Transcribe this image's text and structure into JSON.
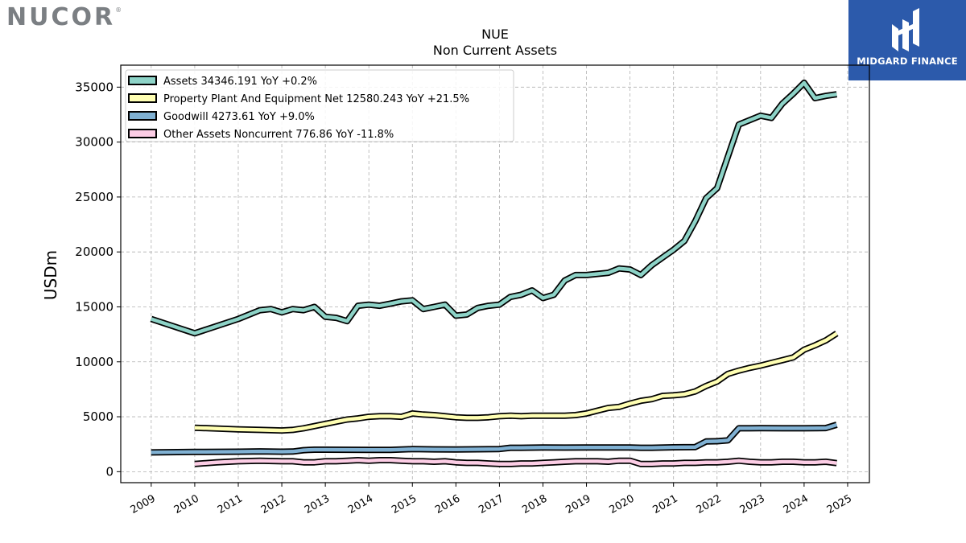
{
  "header": {
    "brand": "NUCOR",
    "brand_mark": "®",
    "badge_text": "MIDGARD FINANCE"
  },
  "chart_data": {
    "type": "line",
    "title": "NUE",
    "subtitle": "Non Current  Assets",
    "ylabel": "USDm",
    "xlabel": "",
    "ylim": [
      -1000,
      37000
    ],
    "xlim": [
      2008.3,
      2025.5
    ],
    "yticks": [
      0,
      5000,
      10000,
      15000,
      20000,
      25000,
      30000,
      35000
    ],
    "xticks": [
      2009,
      2010,
      2011,
      2012,
      2013,
      2014,
      2015,
      2016,
      2017,
      2018,
      2019,
      2020,
      2021,
      2022,
      2023,
      2024,
      2025
    ],
    "grid": true,
    "legend_position": "top-left",
    "series": [
      {
        "name": "Assets  34346.191 YoY +0.2%",
        "color": "#8dd3c7",
        "points": [
          [
            2009.0,
            13900
          ],
          [
            2010.0,
            12600
          ],
          [
            2011.0,
            13900
          ],
          [
            2011.5,
            14700
          ],
          [
            2011.75,
            14800
          ],
          [
            2012.0,
            14500
          ],
          [
            2012.25,
            14800
          ],
          [
            2012.5,
            14700
          ],
          [
            2012.75,
            15000
          ],
          [
            2013.0,
            14100
          ],
          [
            2013.25,
            14000
          ],
          [
            2013.5,
            13700
          ],
          [
            2013.75,
            15100
          ],
          [
            2014.0,
            15200
          ],
          [
            2014.25,
            15100
          ],
          [
            2014.5,
            15300
          ],
          [
            2014.75,
            15500
          ],
          [
            2015.0,
            15600
          ],
          [
            2015.25,
            14800
          ],
          [
            2015.5,
            15000
          ],
          [
            2015.75,
            15200
          ],
          [
            2016.0,
            14200
          ],
          [
            2016.25,
            14300
          ],
          [
            2016.5,
            14900
          ],
          [
            2016.75,
            15100
          ],
          [
            2017.0,
            15200
          ],
          [
            2017.25,
            15900
          ],
          [
            2017.5,
            16100
          ],
          [
            2017.75,
            16500
          ],
          [
            2018.0,
            15800
          ],
          [
            2018.25,
            16100
          ],
          [
            2018.5,
            17400
          ],
          [
            2018.75,
            17900
          ],
          [
            2019.0,
            17900
          ],
          [
            2019.25,
            18000
          ],
          [
            2019.5,
            18100
          ],
          [
            2019.75,
            18500
          ],
          [
            2020.0,
            18400
          ],
          [
            2020.25,
            17900
          ],
          [
            2020.5,
            18800
          ],
          [
            2020.75,
            19500
          ],
          [
            2021.0,
            20200
          ],
          [
            2021.25,
            21000
          ],
          [
            2021.5,
            22800
          ],
          [
            2021.75,
            24900
          ],
          [
            2022.0,
            25800
          ],
          [
            2022.25,
            28700
          ],
          [
            2022.5,
            31600
          ],
          [
            2022.75,
            32000
          ],
          [
            2023.0,
            32400
          ],
          [
            2023.25,
            32200
          ],
          [
            2023.5,
            33500
          ],
          [
            2023.75,
            34400
          ],
          [
            2024.0,
            35400
          ],
          [
            2024.25,
            34000
          ],
          [
            2024.5,
            34200
          ],
          [
            2024.75,
            34346
          ]
        ]
      },
      {
        "name": "Property Plant And Equipment Net  12580.243 YoY +21.5%",
        "color": "#ffffb3",
        "points": [
          [
            2010.0,
            4000
          ],
          [
            2011.0,
            3850
          ],
          [
            2011.5,
            3800
          ],
          [
            2012.0,
            3750
          ],
          [
            2012.25,
            3800
          ],
          [
            2012.5,
            3950
          ],
          [
            2012.75,
            4150
          ],
          [
            2013.0,
            4350
          ],
          [
            2013.25,
            4550
          ],
          [
            2013.5,
            4750
          ],
          [
            2013.75,
            4850
          ],
          [
            2014.0,
            5000
          ],
          [
            2014.25,
            5050
          ],
          [
            2014.5,
            5050
          ],
          [
            2014.75,
            5000
          ],
          [
            2015.0,
            5300
          ],
          [
            2015.25,
            5200
          ],
          [
            2015.5,
            5150
          ],
          [
            2015.75,
            5050
          ],
          [
            2016.0,
            4950
          ],
          [
            2016.25,
            4900
          ],
          [
            2016.5,
            4900
          ],
          [
            2016.75,
            4950
          ],
          [
            2017.0,
            5050
          ],
          [
            2017.25,
            5100
          ],
          [
            2017.5,
            5050
          ],
          [
            2017.75,
            5100
          ],
          [
            2018.0,
            5100
          ],
          [
            2018.25,
            5100
          ],
          [
            2018.5,
            5100
          ],
          [
            2018.75,
            5150
          ],
          [
            2019.0,
            5300
          ],
          [
            2019.25,
            5550
          ],
          [
            2019.5,
            5800
          ],
          [
            2019.75,
            5900
          ],
          [
            2020.0,
            6200
          ],
          [
            2020.25,
            6450
          ],
          [
            2020.5,
            6600
          ],
          [
            2020.75,
            6900
          ],
          [
            2021.0,
            6950
          ],
          [
            2021.25,
            7050
          ],
          [
            2021.5,
            7300
          ],
          [
            2021.75,
            7800
          ],
          [
            2022.0,
            8200
          ],
          [
            2022.25,
            8900
          ],
          [
            2022.5,
            9200
          ],
          [
            2022.75,
            9450
          ],
          [
            2023.0,
            9650
          ],
          [
            2023.25,
            9900
          ],
          [
            2023.5,
            10150
          ],
          [
            2023.75,
            10400
          ],
          [
            2024.0,
            11100
          ],
          [
            2024.25,
            11500
          ],
          [
            2024.5,
            11950
          ],
          [
            2024.75,
            12580
          ]
        ]
      },
      {
        "name": "Goodwill  4273.61 YoY +9.0%",
        "color": "#80b1d3",
        "points": [
          [
            2009.0,
            1750
          ],
          [
            2010.0,
            1800
          ],
          [
            2011.0,
            1820
          ],
          [
            2011.5,
            1850
          ],
          [
            2012.0,
            1820
          ],
          [
            2012.25,
            1830
          ],
          [
            2012.5,
            1960
          ],
          [
            2012.75,
            2000
          ],
          [
            2013.0,
            2000
          ],
          [
            2014.0,
            1990
          ],
          [
            2014.5,
            1990
          ],
          [
            2015.0,
            2050
          ],
          [
            2015.5,
            2030
          ],
          [
            2016.0,
            2020
          ],
          [
            2016.5,
            2040
          ],
          [
            2017.0,
            2060
          ],
          [
            2017.25,
            2180
          ],
          [
            2017.5,
            2180
          ],
          [
            2018.0,
            2200
          ],
          [
            2018.5,
            2190
          ],
          [
            2019.0,
            2200
          ],
          [
            2019.5,
            2200
          ],
          [
            2020.0,
            2210
          ],
          [
            2020.25,
            2180
          ],
          [
            2020.5,
            2180
          ],
          [
            2021.0,
            2220
          ],
          [
            2021.5,
            2240
          ],
          [
            2021.75,
            2750
          ],
          [
            2022.0,
            2770
          ],
          [
            2022.25,
            2850
          ],
          [
            2022.5,
            3950
          ],
          [
            2022.75,
            3950
          ],
          [
            2023.0,
            3960
          ],
          [
            2023.5,
            3950
          ],
          [
            2024.0,
            3950
          ],
          [
            2024.5,
            3970
          ],
          [
            2024.75,
            4274
          ]
        ]
      },
      {
        "name": "Other Assets Noncurrent  776.86 YoY -11.8%",
        "color": "#fccde5",
        "points": [
          [
            2010.0,
            700
          ],
          [
            2010.5,
            850
          ],
          [
            2011.0,
            950
          ],
          [
            2011.5,
            1000
          ],
          [
            2012.0,
            950
          ],
          [
            2012.25,
            950
          ],
          [
            2012.5,
            850
          ],
          [
            2012.75,
            850
          ],
          [
            2013.0,
            950
          ],
          [
            2013.25,
            950
          ],
          [
            2013.5,
            1000
          ],
          [
            2013.75,
            1050
          ],
          [
            2014.0,
            1000
          ],
          [
            2014.25,
            1050
          ],
          [
            2014.5,
            1050
          ],
          [
            2014.75,
            1000
          ],
          [
            2015.0,
            950
          ],
          [
            2015.25,
            950
          ],
          [
            2015.5,
            900
          ],
          [
            2015.75,
            950
          ],
          [
            2016.0,
            850
          ],
          [
            2016.25,
            800
          ],
          [
            2016.5,
            800
          ],
          [
            2016.75,
            750
          ],
          [
            2017.0,
            700
          ],
          [
            2017.25,
            700
          ],
          [
            2017.5,
            750
          ],
          [
            2017.75,
            750
          ],
          [
            2018.0,
            800
          ],
          [
            2018.25,
            850
          ],
          [
            2018.5,
            900
          ],
          [
            2018.75,
            950
          ],
          [
            2019.0,
            950
          ],
          [
            2019.25,
            950
          ],
          [
            2019.5,
            900
          ],
          [
            2019.75,
            1000
          ],
          [
            2020.0,
            1000
          ],
          [
            2020.25,
            700
          ],
          [
            2020.5,
            700
          ],
          [
            2020.75,
            750
          ],
          [
            2021.0,
            750
          ],
          [
            2021.25,
            800
          ],
          [
            2021.5,
            800
          ],
          [
            2021.75,
            850
          ],
          [
            2022.0,
            850
          ],
          [
            2022.25,
            900
          ],
          [
            2022.5,
            1000
          ],
          [
            2022.75,
            900
          ],
          [
            2023.0,
            850
          ],
          [
            2023.25,
            850
          ],
          [
            2023.5,
            900
          ],
          [
            2023.75,
            900
          ],
          [
            2024.0,
            850
          ],
          [
            2024.25,
            850
          ],
          [
            2024.5,
            900
          ],
          [
            2024.75,
            777
          ]
        ]
      }
    ]
  }
}
